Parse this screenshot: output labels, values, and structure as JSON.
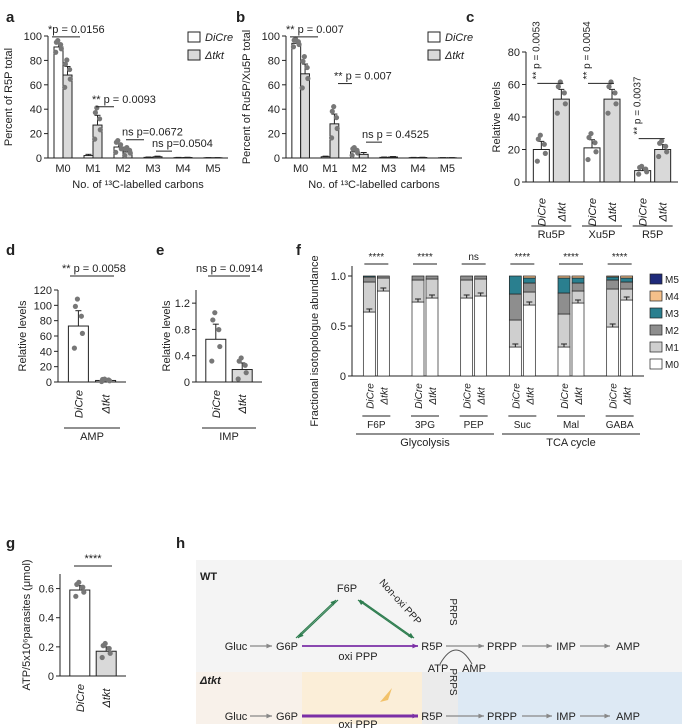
{
  "panel_letters": [
    "a",
    "b",
    "c",
    "d",
    "e",
    "f",
    "g",
    "h"
  ],
  "colors": {
    "open": "#ffffff",
    "filled": "#d9d9d9",
    "dot": "#777777",
    "purple": "#7b2fa6",
    "green": "#2e7d4f",
    "grey_arrow": "#888888",
    "glyc_bg": "#fbeed8",
    "tca_bg": "#dde9f4",
    "prps_bg": "#ebebeb",
    "wt_bg": "#f4f4f4",
    "m5": "#1f2a7a",
    "m4": "#f5c08a",
    "m3": "#2a7f8f",
    "m2": "#8e8e8e",
    "m1": "#cfcfcf",
    "m0": "#ffffff"
  },
  "legend_ab": {
    "series": [
      "DiCre",
      "Δtkt"
    ]
  },
  "legend_f": {
    "labels": [
      "M5",
      "M4",
      "M3",
      "M2",
      "M1",
      "M0"
    ]
  },
  "chart_data": [
    {
      "panel": "a",
      "type": "bar",
      "ylabel": "Percent of R5P total",
      "xlabel": "No. of ¹³C-labelled carbons",
      "categories": [
        "M0",
        "M1",
        "M2",
        "M3",
        "M4",
        "M5"
      ],
      "ylim": [
        0,
        100
      ],
      "yticks": [
        0,
        20,
        40,
        60,
        80,
        100
      ],
      "series": [
        {
          "name": "DiCre",
          "values": [
            91,
            2,
            9,
            0.5,
            0.3,
            0.2
          ],
          "errors": [
            3,
            1,
            3,
            0.3,
            0.2,
            0.1
          ]
        },
        {
          "name": "Δtkt",
          "values": [
            68,
            27,
            5,
            1,
            0.4,
            0.2
          ],
          "errors": [
            7,
            8,
            2,
            0.5,
            0.2,
            0.1
          ]
        }
      ],
      "annotations": [
        "*p = 0.0156",
        "** p = 0.0093",
        "ns p=0.0672",
        "ns p=0.0504"
      ]
    },
    {
      "panel": "b",
      "type": "bar",
      "ylabel": "Percent of Ru5P/Xu5P total",
      "xlabel": "No. of ¹³C-labelled carbons",
      "categories": [
        "M0",
        "M1",
        "M2",
        "M3",
        "M4",
        "M5"
      ],
      "ylim": [
        0,
        100
      ],
      "yticks": [
        0,
        20,
        40,
        60,
        80,
        100
      ],
      "series": [
        {
          "name": "DiCre",
          "values": [
            94,
            1,
            5,
            0.5,
            0.3,
            0.2
          ],
          "errors": [
            2,
            0.5,
            2,
            0.3,
            0.2,
            0.1
          ]
        },
        {
          "name": "Δtkt",
          "values": [
            69,
            28,
            3,
            0.8,
            0.4,
            0.2
          ],
          "errors": [
            8,
            8,
            1.5,
            0.4,
            0.2,
            0.1
          ]
        }
      ],
      "annotations": [
        "** p = 0.007",
        "** p = 0.007",
        "ns p = 0.4525"
      ]
    },
    {
      "panel": "c",
      "type": "bar",
      "ylabel": "Relative levels",
      "ylim": [
        0,
        80
      ],
      "yticks": [
        0,
        20,
        40,
        60,
        80
      ],
      "groups": [
        "Ru5P",
        "Xu5P",
        "R5P"
      ],
      "bar_labels": [
        "DiCre",
        "Δtkt"
      ],
      "series": [
        {
          "name": "DiCre",
          "values": [
            20,
            21,
            7
          ],
          "errors": [
            5,
            5,
            1.5
          ]
        },
        {
          "name": "Δtkt",
          "values": [
            51,
            51,
            20
          ],
          "errors": [
            6,
            6,
            3
          ]
        }
      ],
      "annotations": [
        "** p = 0.0053",
        "** p = 0.0054",
        "** p = 0.0037"
      ]
    },
    {
      "panel": "d",
      "type": "bar",
      "ylabel": "Relative levels",
      "ylim": [
        0,
        120
      ],
      "yticks": [
        0,
        20,
        40,
        60,
        80,
        100,
        120
      ],
      "categories": [
        "DiCre",
        "Δtkt"
      ],
      "group": "AMP",
      "values": [
        73,
        2
      ],
      "errors": [
        20,
        1
      ],
      "annotation": "** p = 0.0058"
    },
    {
      "panel": "e",
      "type": "bar",
      "ylabel": "Relative levels",
      "ylim": [
        0,
        1.4
      ],
      "yticks": [
        0,
        0.4,
        0.8,
        1.2
      ],
      "ytick_labels": [
        "0",
        "0.4",
        "0.8",
        "1.2"
      ],
      "categories": [
        "DiCre",
        "Δtkt"
      ],
      "group": "IMP",
      "values": [
        0.65,
        0.19
      ],
      "errors": [
        0.23,
        0.1
      ],
      "annotation": "ns p = 0.0914"
    },
    {
      "panel": "f",
      "type": "bar",
      "ylabel": "Fractional isotopologue abundance",
      "ylim": [
        0,
        1.1
      ],
      "yticks": [
        0,
        0.5,
        1.0
      ],
      "ytick_labels": [
        "0",
        "0.5",
        "1.0"
      ],
      "metabolites": [
        "F6P",
        "3PG",
        "PEP",
        "Suc",
        "Mal",
        "GABA"
      ],
      "bar_labels": [
        "DiCre",
        "Δtkt"
      ],
      "group_labels": [
        "Glycolysis",
        "TCA cycle"
      ],
      "significance": [
        "****",
        "****",
        "ns",
        "****",
        "****",
        "****"
      ],
      "m0": [
        0.64,
        0.85,
        0.74,
        0.78,
        0.78,
        0.8,
        0.29,
        0.71,
        0.29,
        0.73,
        0.49,
        0.76
      ],
      "m1": [
        0.3,
        0.13,
        0.22,
        0.19,
        0.18,
        0.17,
        0.27,
        0.13,
        0.33,
        0.12,
        0.38,
        0.11
      ],
      "m2": [
        0.05,
        0.02,
        0.04,
        0.03,
        0.04,
        0.03,
        0.26,
        0.09,
        0.21,
        0.08,
        0.09,
        0.07
      ],
      "m3": [
        0.01,
        0.0,
        0.0,
        0.0,
        0.0,
        0.0,
        0.18,
        0.05,
        0.15,
        0.05,
        0.03,
        0.04
      ],
      "m4": [
        0,
        0,
        0,
        0,
        0,
        0,
        0,
        0.02,
        0.02,
        0.02,
        0.01,
        0.02
      ],
      "m5": [
        0,
        0,
        0,
        0,
        0,
        0,
        0,
        0,
        0,
        0,
        0,
        0
      ]
    },
    {
      "panel": "g",
      "type": "bar",
      "ylabel": "ATP/5x10⁶parasites (μmol)",
      "ylim": [
        0,
        0.7
      ],
      "yticks": [
        0,
        0.2,
        0.4,
        0.6
      ],
      "ytick_labels": [
        "0",
        "0.2",
        "0.4",
        "0.6"
      ],
      "categories": [
        "DiCre",
        "Δtkt"
      ],
      "values": [
        0.59,
        0.17
      ],
      "errors": [
        0.03,
        0.03
      ],
      "annotation": "****"
    }
  ],
  "diagram": {
    "wt_title": "WT",
    "mut_title": "Δtkt",
    "gluc": "Gluc",
    "g6p": "G6P",
    "f6p": "F6P",
    "r5p": "R5P",
    "prpp": "PRPP",
    "imp": "IMP",
    "amp": "AMP",
    "atp": "ATP",
    "prps": "PRPS",
    "oxi": "oxi PPP",
    "nonoxi": "Non-oxi PPP"
  }
}
